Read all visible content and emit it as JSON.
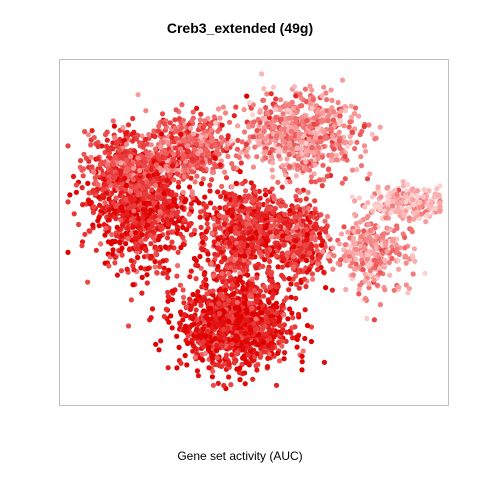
{
  "chart_data": {
    "type": "scatter",
    "title": "Creb3_extended (49g)",
    "xlabel": "Gene set activity (AUC)",
    "ylabel": "",
    "legend": "none",
    "grid": false,
    "axes_ticks": "none",
    "color_scale": {
      "low": "#ffd0d0",
      "high": "#e00000"
    },
    "clusters": [
      {
        "name": "left",
        "cx": 0.2,
        "cy": 0.58,
        "sx": 0.065,
        "sy": 0.09,
        "n": 900,
        "level": 0.82
      },
      {
        "name": "left-top",
        "cx": 0.15,
        "cy": 0.7,
        "sx": 0.05,
        "sy": 0.05,
        "n": 350,
        "level": 0.68
      },
      {
        "name": "bottom",
        "cx": 0.45,
        "cy": 0.22,
        "sx": 0.075,
        "sy": 0.065,
        "n": 1100,
        "level": 0.88
      },
      {
        "name": "center",
        "cx": 0.47,
        "cy": 0.5,
        "sx": 0.06,
        "sy": 0.075,
        "n": 650,
        "level": 0.78
      },
      {
        "name": "center-right",
        "cx": 0.62,
        "cy": 0.48,
        "sx": 0.04,
        "sy": 0.06,
        "n": 350,
        "level": 0.72
      },
      {
        "name": "top-center",
        "cx": 0.33,
        "cy": 0.76,
        "sx": 0.06,
        "sy": 0.05,
        "n": 450,
        "level": 0.55
      },
      {
        "name": "top-right",
        "cx": 0.62,
        "cy": 0.8,
        "sx": 0.08,
        "sy": 0.06,
        "n": 650,
        "level": 0.38
      },
      {
        "name": "right",
        "cx": 0.82,
        "cy": 0.44,
        "sx": 0.05,
        "sy": 0.06,
        "n": 300,
        "level": 0.3
      },
      {
        "name": "far-right",
        "cx": 0.91,
        "cy": 0.59,
        "sx": 0.05,
        "sy": 0.025,
        "n": 200,
        "level": 0.15
      }
    ]
  }
}
